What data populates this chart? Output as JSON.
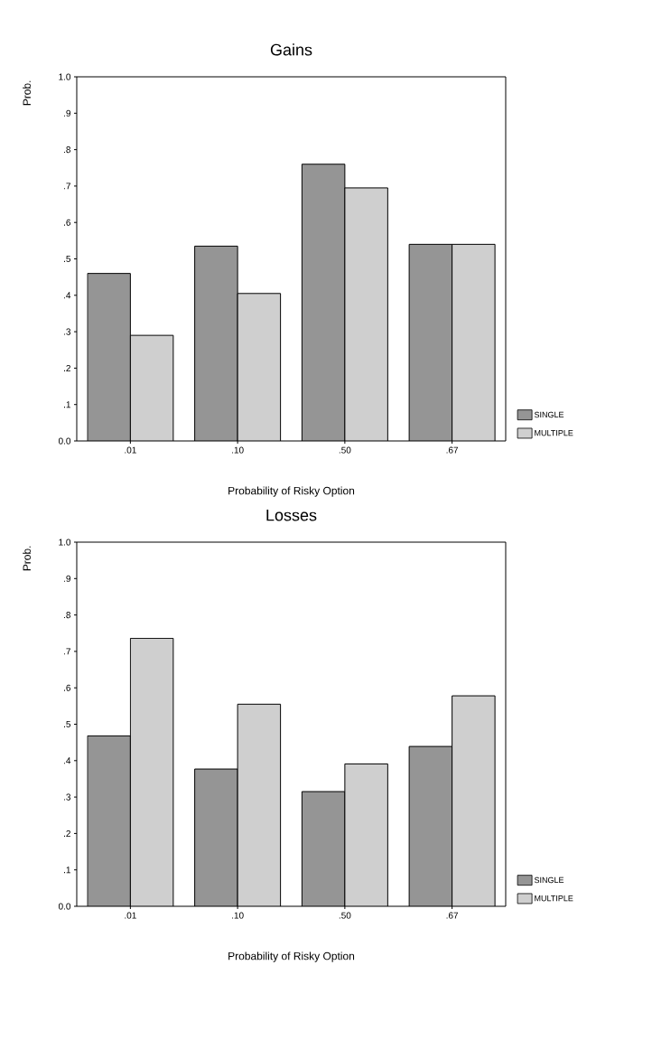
{
  "chart_data": [
    {
      "type": "bar",
      "title": "Gains",
      "xlabel": "Probability of Risky Option",
      "ylabel": "Prob.",
      "categories": [
        ".01",
        ".10",
        ".50",
        ".67"
      ],
      "series": [
        {
          "name": "SINGLE",
          "color": "#959595",
          "values": [
            0.46,
            0.535,
            0.76,
            0.54
          ]
        },
        {
          "name": "MULTIPLE",
          "color": "#cfcfcf",
          "values": [
            0.29,
            0.405,
            0.695,
            0.54
          ]
        }
      ],
      "ylim": [
        0,
        1
      ],
      "yticks": [
        {
          "value": 0,
          "label": "0.0"
        },
        {
          "value": 0.1,
          "label": ".1"
        },
        {
          "value": 0.2,
          "label": ".2"
        },
        {
          "value": 0.3,
          "label": ".3"
        },
        {
          "value": 0.4,
          "label": ".4"
        },
        {
          "value": 0.5,
          "label": ".5"
        },
        {
          "value": 0.6,
          "label": ".6"
        },
        {
          "value": 0.7,
          "label": ".7"
        },
        {
          "value": 0.8,
          "label": ".8"
        },
        {
          "value": 0.9,
          "label": ".9"
        },
        {
          "value": 1,
          "label": "1.0"
        }
      ],
      "legend": "bottom right"
    },
    {
      "type": "bar",
      "title": "Losses",
      "xlabel": "Probability of Risky Option",
      "ylabel": "Prob.",
      "categories": [
        ".01",
        ".10",
        ".50",
        ".67"
      ],
      "series": [
        {
          "name": "SINGLE",
          "color": "#959595",
          "values": [
            0.468,
            0.377,
            0.315,
            0.439
          ]
        },
        {
          "name": "MULTIPLE",
          "color": "#cfcfcf",
          "values": [
            0.736,
            0.555,
            0.391,
            0.578
          ]
        }
      ],
      "ylim": [
        0,
        1
      ],
      "yticks": [
        {
          "value": 0,
          "label": "0.0"
        },
        {
          "value": 0.1,
          "label": ".1"
        },
        {
          "value": 0.2,
          "label": ".2"
        },
        {
          "value": 0.3,
          "label": ".3"
        },
        {
          "value": 0.4,
          "label": ".4"
        },
        {
          "value": 0.5,
          "label": ".5"
        },
        {
          "value": 0.6,
          "label": ".6"
        },
        {
          "value": 0.7,
          "label": ".7"
        },
        {
          "value": 0.8,
          "label": ".8"
        },
        {
          "value": 0.9,
          "label": ".9"
        },
        {
          "value": 1,
          "label": "1.0"
        }
      ],
      "legend": "bottom right"
    }
  ]
}
